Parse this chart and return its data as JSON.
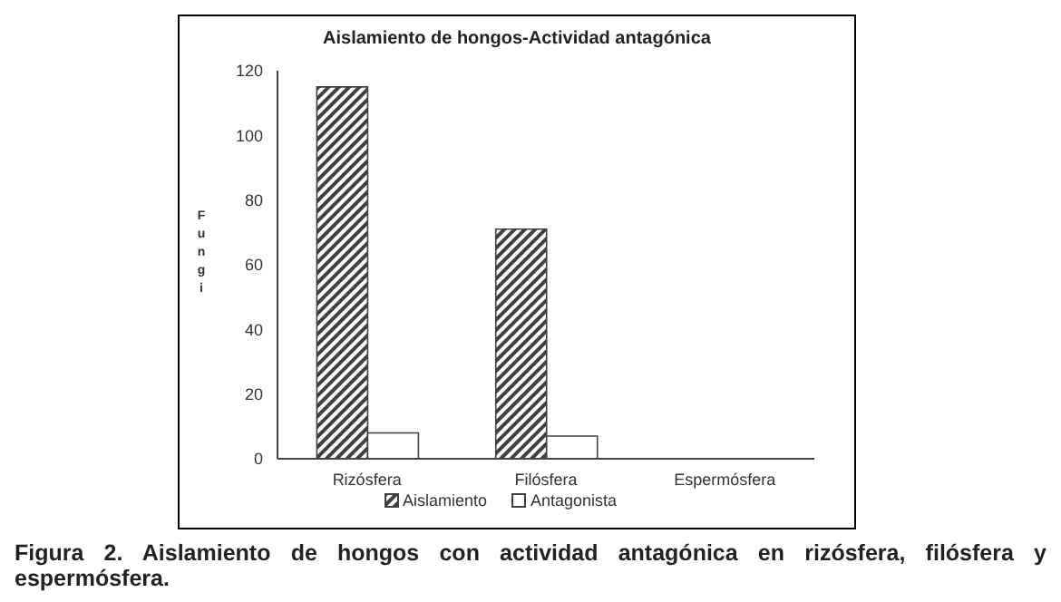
{
  "chart_data": {
    "type": "bar",
    "title": "Aislamiento de hongos-Actividad antagónica",
    "ylabel": "Fungi",
    "categories": [
      "Rizósfera",
      "Filósfera",
      "Espermósfera"
    ],
    "series": [
      {
        "name": "Aislamiento",
        "color": "#404040",
        "values": [
          115,
          71,
          0
        ]
      },
      {
        "name": "Antagonista",
        "color": "#ffffff",
        "values": [
          8,
          7,
          0
        ]
      }
    ],
    "ylim": [
      0,
      120
    ],
    "yticks": [
      0,
      20,
      40,
      60,
      80,
      100,
      120
    ],
    "grid": false,
    "legend": "bottom",
    "annotations": [
      "Figura 2. Aislamiento de hongos con actividad antagónica en rizósfera, filósfera y espermósfera."
    ]
  }
}
